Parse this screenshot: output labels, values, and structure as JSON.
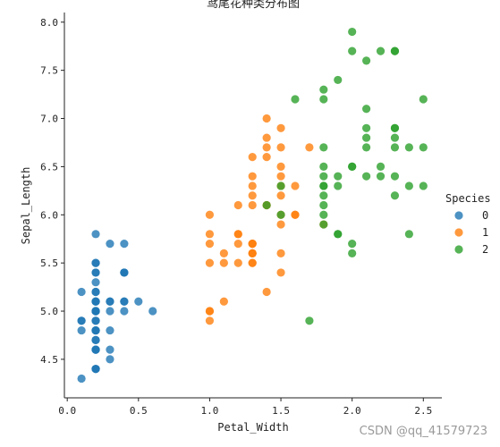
{
  "chart_data": {
    "type": "scatter",
    "title": "鸢尾花种类分布图",
    "xlabel": "Petal_Width",
    "ylabel": "Sepal_Length",
    "xlim": [
      -0.02,
      2.63
    ],
    "ylim": [
      4.1,
      8.1
    ],
    "xticks": [
      "0.0",
      "0.5",
      "1.0",
      "1.5",
      "2.0",
      "2.5"
    ],
    "yticks": [
      "4.5",
      "5.0",
      "5.5",
      "6.0",
      "6.5",
      "7.0",
      "7.5",
      "8.0"
    ],
    "grid": false,
    "legend": {
      "title": "Species",
      "placement": "right"
    },
    "series": [
      {
        "name": "0",
        "color": "#1f77b4",
        "x": [
          0.2,
          0.2,
          0.2,
          0.2,
          0.2,
          0.4,
          0.3,
          0.2,
          0.2,
          0.1,
          0.2,
          0.2,
          0.1,
          0.1,
          0.2,
          0.4,
          0.4,
          0.3,
          0.3,
          0.3,
          0.2,
          0.4,
          0.2,
          0.5,
          0.2,
          0.2,
          0.4,
          0.2,
          0.2,
          0.2,
          0.2,
          0.4,
          0.1,
          0.2,
          0.2,
          0.2,
          0.2,
          0.1,
          0.2,
          0.2,
          0.3,
          0.3,
          0.2,
          0.6,
          0.4,
          0.3,
          0.2,
          0.2,
          0.2,
          0.2
        ],
        "y": [
          5.1,
          4.9,
          4.7,
          4.6,
          5.0,
          5.4,
          4.6,
          5.0,
          4.4,
          4.9,
          5.4,
          4.8,
          4.8,
          4.3,
          5.8,
          5.7,
          5.4,
          5.1,
          5.7,
          5.1,
          5.4,
          5.1,
          4.6,
          5.1,
          4.8,
          5.0,
          5.0,
          5.2,
          5.2,
          4.7,
          4.8,
          5.4,
          5.2,
          5.5,
          4.9,
          5.0,
          5.5,
          4.9,
          4.4,
          5.1,
          5.0,
          4.5,
          4.4,
          5.0,
          5.1,
          4.8,
          5.1,
          4.6,
          5.3,
          5.0
        ]
      },
      {
        "name": "1",
        "color": "#ff7f0e",
        "x": [
          1.4,
          1.5,
          1.5,
          1.3,
          1.5,
          1.3,
          1.6,
          1.0,
          1.3,
          1.4,
          1.0,
          1.5,
          1.0,
          1.4,
          1.3,
          1.4,
          1.5,
          1.0,
          1.5,
          1.1,
          1.8,
          1.3,
          1.5,
          1.2,
          1.3,
          1.4,
          1.4,
          1.7,
          1.5,
          1.0,
          1.1,
          1.0,
          1.2,
          1.6,
          1.5,
          1.6,
          1.5,
          1.3,
          1.3,
          1.3,
          1.2,
          1.4,
          1.2,
          1.0,
          1.3,
          1.2,
          1.3,
          1.3,
          1.1,
          1.3
        ],
        "y": [
          7.0,
          6.4,
          6.9,
          5.5,
          6.5,
          5.7,
          6.3,
          4.9,
          6.6,
          5.2,
          5.0,
          5.9,
          6.0,
          6.1,
          5.6,
          6.7,
          5.6,
          5.8,
          6.2,
          5.6,
          5.9,
          6.1,
          6.3,
          6.1,
          6.4,
          6.6,
          6.8,
          6.7,
          6.0,
          5.7,
          5.5,
          5.5,
          5.8,
          6.0,
          5.4,
          6.0,
          6.7,
          6.3,
          5.6,
          5.5,
          5.5,
          6.1,
          5.8,
          5.0,
          5.6,
          5.7,
          5.7,
          6.2,
          5.1,
          5.7
        ]
      },
      {
        "name": "2",
        "color": "#2ca02c",
        "x": [
          2.5,
          1.9,
          2.1,
          1.8,
          2.2,
          2.1,
          1.7,
          1.8,
          1.8,
          2.5,
          2.0,
          1.9,
          2.1,
          2.0,
          2.4,
          2.3,
          1.8,
          2.2,
          2.3,
          1.5,
          2.3,
          2.0,
          2.0,
          1.8,
          2.1,
          1.8,
          1.8,
          1.8,
          2.1,
          1.6,
          1.9,
          2.0,
          2.2,
          1.5,
          1.4,
          2.3,
          2.4,
          1.8,
          1.8,
          2.1,
          2.4,
          2.3,
          1.9,
          2.3,
          2.5,
          2.3,
          1.9,
          2.0,
          2.3,
          1.8
        ],
        "y": [
          6.3,
          5.8,
          7.1,
          6.3,
          6.5,
          7.6,
          4.9,
          7.3,
          6.7,
          7.2,
          6.5,
          6.4,
          6.8,
          5.7,
          5.8,
          6.4,
          6.5,
          7.7,
          7.7,
          6.0,
          6.9,
          5.6,
          7.7,
          6.3,
          6.7,
          7.2,
          6.2,
          6.1,
          6.4,
          7.2,
          7.4,
          7.9,
          6.4,
          6.3,
          6.1,
          7.7,
          6.3,
          6.4,
          6.0,
          6.9,
          6.7,
          6.9,
          5.8,
          6.8,
          6.7,
          6.7,
          6.3,
          6.5,
          6.2,
          5.9
        ]
      }
    ]
  },
  "watermark": "CSDN @qq_41579723"
}
